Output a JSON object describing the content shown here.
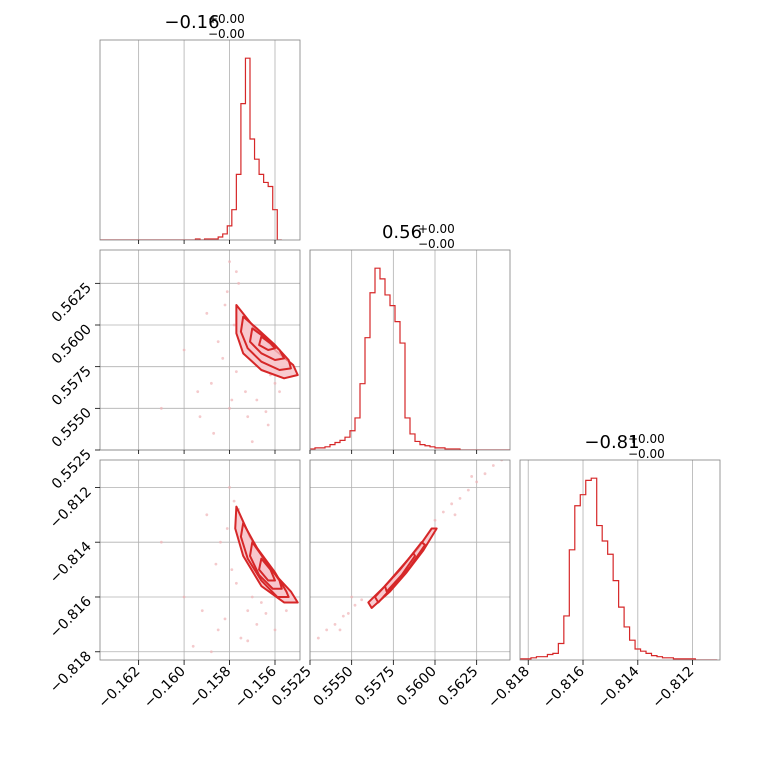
{
  "chart_data": {
    "type": "corner",
    "colors": {
      "series": "#d62728",
      "grid": "#b0b0b0",
      "frame": "#808080",
      "scatter": "#f0b4b6",
      "fill": "#f7c6cc"
    },
    "grid": true,
    "parameters": [
      {
        "title_main": "−0.16",
        "title_sup": "+0.00",
        "title_sub": "−0.00",
        "range": [
          -0.1637,
          -0.1549
        ]
      },
      {
        "title_main": "0.56",
        "title_sup": "+0.00",
        "title_sub": "−0.00",
        "range": [
          0.5525,
          0.5645
        ]
      },
      {
        "title_main": "−0.81",
        "title_sup": "+0.00",
        "title_sub": "−0.00",
        "range": [
          -0.8183,
          -0.811
        ]
      }
    ],
    "ticks": [
      {
        "values": [
          -0.162,
          -0.16,
          -0.158,
          -0.156
        ],
        "labels": [
          "−0.162",
          "−0.160",
          "−0.158",
          "−0.156"
        ]
      },
      {
        "values": [
          0.5525,
          0.555,
          0.5575,
          0.56,
          0.5625
        ],
        "labels": [
          "0.5525",
          "0.5550",
          "0.5575",
          "0.5600",
          "0.5625"
        ]
      },
      {
        "values": [
          -0.818,
          -0.816,
          -0.814,
          -0.812
        ],
        "labels": [
          "−0.818",
          "−0.816",
          "−0.814",
          "−0.812"
        ]
      }
    ],
    "histograms": [
      {
        "bin_start": -0.1637,
        "bin_width": 0.0002,
        "counts": [
          0,
          0,
          0,
          0,
          0,
          0,
          0,
          0,
          0,
          0,
          0,
          0,
          0,
          0,
          0,
          0,
          0,
          0,
          0,
          0,
          0,
          1,
          0,
          1,
          1,
          1,
          3,
          6,
          14,
          30,
          65,
          135,
          180,
          100,
          80,
          65,
          57,
          53,
          30,
          0
        ]
      },
      {
        "bin_start": 0.5525,
        "bin_width": 0.0003,
        "counts": [
          1,
          2,
          2,
          3,
          5,
          7,
          9,
          12,
          18,
          30,
          62,
          105,
          147,
          170,
          160,
          145,
          135,
          120,
          100,
          30,
          15,
          8,
          5,
          4,
          3,
          2,
          2,
          1,
          1,
          1,
          0,
          0,
          0,
          0,
          0,
          0,
          0,
          0,
          0,
          0
        ]
      },
      {
        "bin_start": -0.8183,
        "bin_width": 0.0002,
        "counts": [
          1,
          1,
          2,
          3,
          3,
          5,
          6,
          15,
          40,
          100,
          140,
          150,
          163,
          165,
          122,
          108,
          96,
          72,
          48,
          30,
          18,
          10,
          8,
          6,
          4,
          3,
          2,
          2,
          1,
          1,
          1,
          1,
          0,
          0,
          0,
          0
        ]
      }
    ],
    "pairs": [
      {
        "x_param": 0,
        "y_param": 1,
        "scatter": [
          [
            -0.158,
            0.5638
          ],
          [
            -0.1577,
            0.5632
          ],
          [
            -0.1582,
            0.5612
          ],
          [
            -0.159,
            0.5607
          ],
          [
            -0.1577,
            0.5572
          ],
          [
            -0.1573,
            0.556
          ],
          [
            -0.1568,
            0.5555
          ],
          [
            -0.1564,
            0.5548
          ],
          [
            -0.1572,
            0.5545
          ],
          [
            -0.158,
            0.555
          ],
          [
            -0.1585,
            0.559
          ],
          [
            -0.1583,
            0.558
          ],
          [
            -0.1563,
            0.554
          ],
          [
            -0.156,
            0.5565
          ],
          [
            -0.1575,
            0.559
          ],
          [
            -0.16,
            0.5585
          ],
          [
            -0.1594,
            0.556
          ],
          [
            -0.1587,
            0.5535
          ],
          [
            -0.157,
            0.553
          ],
          [
            -0.1558,
            0.556
          ],
          [
            -0.1553,
            0.5575
          ],
          [
            -0.1576,
            0.5625
          ],
          [
            -0.1578,
            0.56
          ],
          [
            -0.161,
            0.555
          ],
          [
            -0.1593,
            0.5545
          ],
          [
            -0.1566,
            0.558
          ],
          [
            -0.1581,
            0.562
          ],
          [
            -0.1588,
            0.5565
          ],
          [
            -0.1562,
            0.557
          ],
          [
            -0.1579,
            0.5555
          ]
        ],
        "contours": [
          [
            [
              -0.1577,
              0.5612
            ],
            [
              -0.157,
              0.56
            ],
            [
              -0.156,
              0.5585
            ],
            [
              -0.1552,
              0.5576
            ],
            [
              -0.155,
              0.557
            ],
            [
              -0.1556,
              0.5568
            ],
            [
              -0.1566,
              0.5573
            ],
            [
              -0.1574,
              0.5583
            ],
            [
              -0.1577,
              0.5595
            ]
          ],
          [
            [
              -0.1574,
              0.5605
            ],
            [
              -0.1568,
              0.5598
            ],
            [
              -0.156,
              0.5588
            ],
            [
              -0.1554,
              0.5579
            ],
            [
              -0.1553,
              0.5574
            ],
            [
              -0.1558,
              0.5573
            ],
            [
              -0.1566,
              0.5578
            ],
            [
              -0.1572,
              0.5586
            ],
            [
              -0.1575,
              0.5596
            ]
          ],
          [
            [
              -0.157,
              0.5598
            ],
            [
              -0.1564,
              0.5592
            ],
            [
              -0.1558,
              0.5585
            ],
            [
              -0.1556,
              0.558
            ],
            [
              -0.156,
              0.5579
            ],
            [
              -0.1566,
              0.5583
            ],
            [
              -0.1571,
              0.559
            ]
          ],
          [
            [
              -0.1566,
              0.5593
            ],
            [
              -0.1562,
              0.5589
            ],
            [
              -0.156,
              0.5586
            ],
            [
              -0.1563,
              0.5585
            ],
            [
              -0.1567,
              0.5588
            ]
          ]
        ]
      },
      {
        "x_param": 0,
        "y_param": 2,
        "scatter": [
          [
            -0.158,
            -0.812
          ],
          [
            -0.1578,
            -0.8125
          ],
          [
            -0.1584,
            -0.814
          ],
          [
            -0.159,
            -0.813
          ],
          [
            -0.1577,
            -0.8155
          ],
          [
            -0.1572,
            -0.8165
          ],
          [
            -0.1568,
            -0.817
          ],
          [
            -0.156,
            -0.8172
          ],
          [
            -0.1575,
            -0.8175
          ],
          [
            -0.1582,
            -0.8168
          ],
          [
            -0.1586,
            -0.8148
          ],
          [
            -0.1592,
            -0.8165
          ],
          [
            -0.16,
            -0.816
          ],
          [
            -0.1596,
            -0.8178
          ],
          [
            -0.1588,
            -0.818
          ],
          [
            -0.157,
            -0.816
          ],
          [
            -0.1564,
            -0.8166
          ],
          [
            -0.1555,
            -0.8165
          ],
          [
            -0.161,
            -0.814
          ],
          [
            -0.1576,
            -0.8128
          ],
          [
            -0.1581,
            -0.8135
          ],
          [
            -0.1579,
            -0.815
          ],
          [
            -0.1566,
            -0.8162
          ],
          [
            -0.1572,
            -0.8176
          ],
          [
            -0.1585,
            -0.8172
          ]
        ],
        "contours": [
          [
            [
              -0.1577,
              -0.8127
            ],
            [
              -0.1571,
              -0.8138
            ],
            [
              -0.1562,
              -0.815
            ],
            [
              -0.1553,
              -0.8158
            ],
            [
              -0.155,
              -0.8162
            ],
            [
              -0.1556,
              -0.8162
            ],
            [
              -0.1566,
              -0.8156
            ],
            [
              -0.1574,
              -0.8145
            ],
            [
              -0.15775,
              -0.8135
            ]
          ],
          [
            [
              -0.1574,
              -0.8133
            ],
            [
              -0.1568,
              -0.8142
            ],
            [
              -0.156,
              -0.8151
            ],
            [
              -0.1555,
              -0.8158
            ],
            [
              -0.1554,
              -0.816
            ],
            [
              -0.1559,
              -0.816
            ],
            [
              -0.1566,
              -0.8154
            ],
            [
              -0.1572,
              -0.8146
            ],
            [
              -0.1575,
              -0.8138
            ]
          ],
          [
            [
              -0.157,
              -0.814
            ],
            [
              -0.1564,
              -0.8147
            ],
            [
              -0.1558,
              -0.8154
            ],
            [
              -0.1557,
              -0.8157
            ],
            [
              -0.1561,
              -0.8157
            ],
            [
              -0.1567,
              -0.8152
            ],
            [
              -0.1571,
              -0.8145
            ]
          ],
          [
            [
              -0.1566,
              -0.8146
            ],
            [
              -0.1562,
              -0.815
            ],
            [
              -0.156,
              -0.8154
            ],
            [
              -0.1563,
              -0.8154
            ],
            [
              -0.1567,
              -0.815
            ]
          ]
        ]
      },
      {
        "x_param": 1,
        "y_param": 2,
        "scatter": [
          [
            0.553,
            -0.8175
          ],
          [
            0.5535,
            -0.8172
          ],
          [
            0.554,
            -0.817
          ],
          [
            0.5545,
            -0.8167
          ],
          [
            0.5548,
            -0.8166
          ],
          [
            0.5552,
            -0.8163
          ],
          [
            0.5556,
            -0.8161
          ],
          [
            0.56,
            -0.8132
          ],
          [
            0.5605,
            -0.8129
          ],
          [
            0.561,
            -0.8126
          ],
          [
            0.5615,
            -0.8124
          ],
          [
            0.562,
            -0.8121
          ],
          [
            0.5625,
            -0.8118
          ],
          [
            0.563,
            -0.8115
          ],
          [
            0.5635,
            -0.8112
          ],
          [
            0.564,
            -0.811
          ],
          [
            0.5543,
            -0.8172
          ],
          [
            0.555,
            -0.816
          ],
          [
            0.5612,
            -0.813
          ],
          [
            0.5622,
            -0.8116
          ]
        ],
        "contours": [
          [
            [
              0.556,
              -0.8162
            ],
            [
              0.557,
              -0.8156
            ],
            [
              0.558,
              -0.8149
            ],
            [
              0.559,
              -0.8142
            ],
            [
              0.5598,
              -0.8135
            ],
            [
              0.5601,
              -0.8135
            ],
            [
              0.5593,
              -0.8143
            ],
            [
              0.5583,
              -0.8151
            ],
            [
              0.5573,
              -0.8158
            ],
            [
              0.5562,
              -0.8164
            ]
          ],
          [
            [
              0.5564,
              -0.816
            ],
            [
              0.5573,
              -0.8154
            ],
            [
              0.5583,
              -0.8147
            ],
            [
              0.5592,
              -0.814
            ],
            [
              0.5594,
              -0.8141
            ],
            [
              0.5585,
              -0.8149
            ],
            [
              0.5575,
              -0.8156
            ],
            [
              0.5566,
              -0.8162
            ]
          ],
          [
            [
              0.557,
              -0.8156
            ],
            [
              0.5579,
              -0.815
            ],
            [
              0.5587,
              -0.8144
            ],
            [
              0.5588,
              -0.8145
            ],
            [
              0.558,
              -0.8152
            ],
            [
              0.5571,
              -0.8158
            ]
          ]
        ]
      }
    ]
  }
}
